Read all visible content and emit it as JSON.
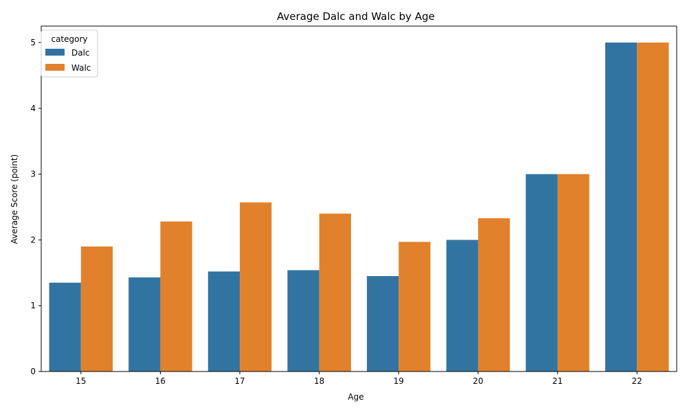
{
  "chart_data": {
    "type": "bar",
    "title": "Average Dalc and Walc by Age",
    "xlabel": "Age",
    "ylabel": "Average Score (point)",
    "categories": [
      "15",
      "16",
      "17",
      "18",
      "19",
      "20",
      "21",
      "22"
    ],
    "series": [
      {
        "name": "Dalc",
        "color": "#3274a1",
        "values": [
          1.35,
          1.43,
          1.52,
          1.54,
          1.45,
          2.0,
          3.0,
          5.0
        ]
      },
      {
        "name": "Walc",
        "color": "#e1812c",
        "values": [
          1.9,
          2.28,
          2.57,
          2.4,
          1.97,
          2.33,
          3.0,
          5.0
        ]
      }
    ],
    "ylim": [
      0,
      5.25
    ],
    "yticks": [
      0,
      1,
      2,
      3,
      4,
      5
    ],
    "grid": false,
    "legend": {
      "title": "category",
      "position": "top-left"
    }
  }
}
